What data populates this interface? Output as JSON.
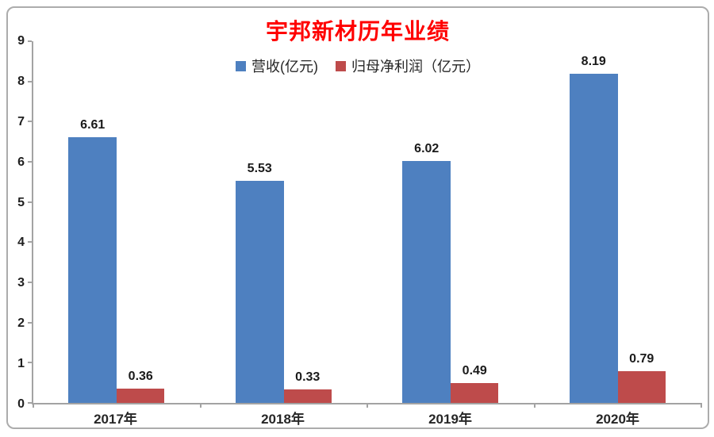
{
  "title": "宇邦新材历年业绩",
  "colors": {
    "title": "#ff0000",
    "revenue": "#4e80c0",
    "profit": "#be4b4b",
    "axis": "#a3a3a3",
    "frame_border": "#acacac",
    "text": "#262626"
  },
  "chart_data": {
    "type": "bar",
    "title": "宇邦新材历年业绩",
    "categories": [
      "2017年",
      "2018年",
      "2019年",
      "2020年"
    ],
    "series": [
      {
        "name": "营收(亿元)",
        "color": "#4e80c0",
        "values": [
          6.61,
          5.53,
          6.02,
          8.19
        ]
      },
      {
        "name": "归母净利润（亿元）",
        "color": "#be4b4b",
        "values": [
          0.36,
          0.33,
          0.49,
          0.79
        ]
      }
    ],
    "xlabel": "",
    "ylabel": "",
    "ylim": [
      0,
      9
    ],
    "yticks": [
      0,
      1,
      2,
      3,
      4,
      5,
      6,
      7,
      8,
      9
    ],
    "grid": false,
    "legend_position": "top-center",
    "value_labels": true,
    "value_label_decimals": 2
  }
}
